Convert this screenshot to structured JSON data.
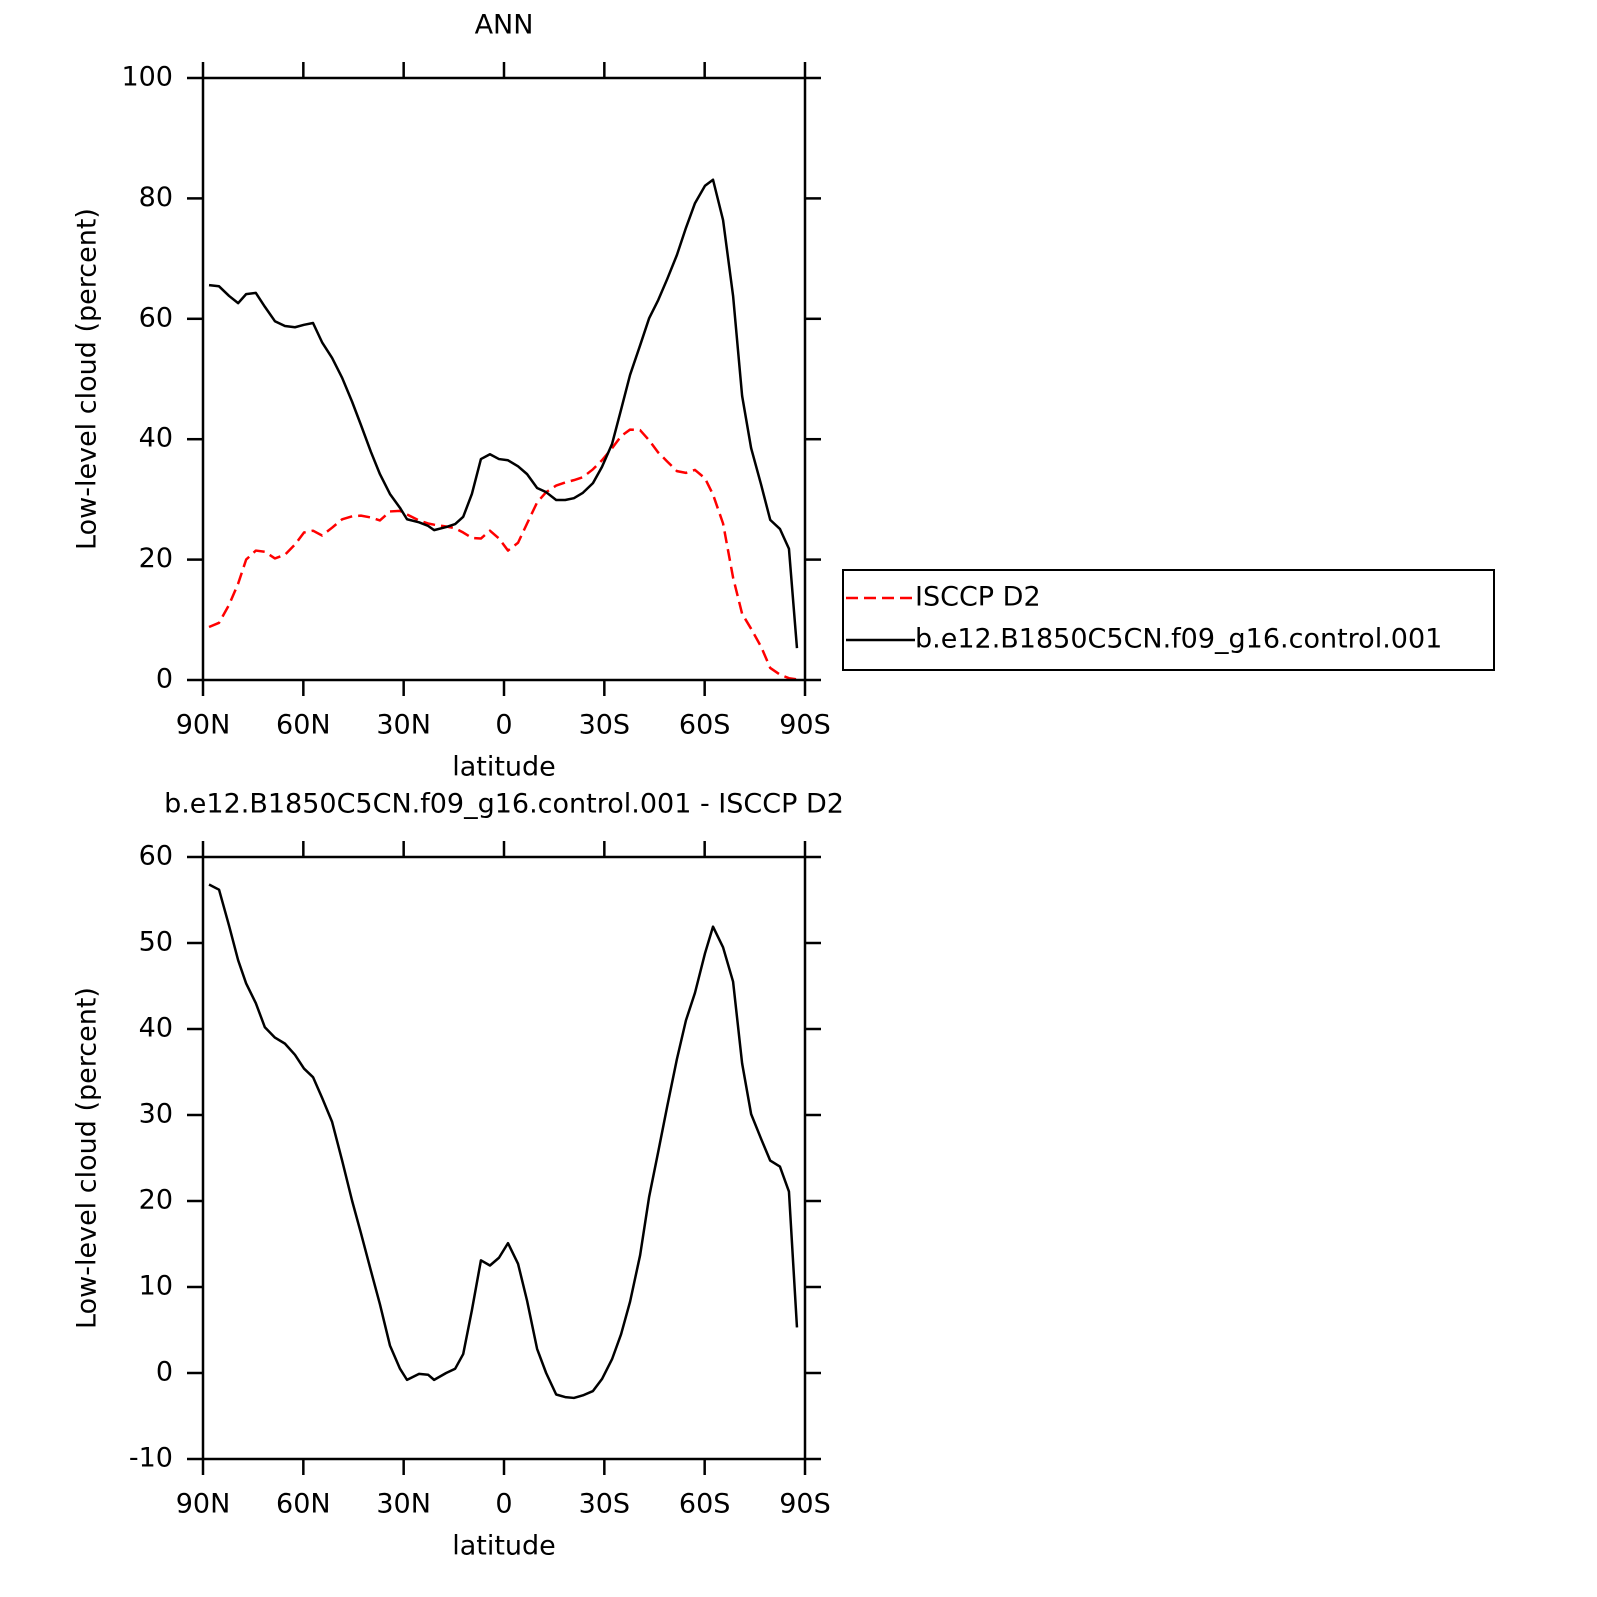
{
  "chart_data": [
    {
      "type": "line",
      "title": "ANN",
      "xlabel": "latitude",
      "ylabel": "Low-level cloud (percent)",
      "x": [
        88.2,
        85.2,
        82.2,
        79.5,
        77.1,
        74.2,
        71.5,
        68.5,
        65.5,
        62.5,
        59.8,
        57.1,
        54.4,
        51.4,
        48.4,
        45.4,
        42.8,
        39.8,
        37.1,
        34.1,
        31.1,
        29.0,
        25.4,
        22.7,
        20.9,
        17.3,
        14.6,
        12.2,
        9.6,
        6.9,
        4.2,
        1.5,
        -1.2,
        -4.2,
        -6.9,
        -9.9,
        -12.6,
        -15.6,
        -18.3,
        -20.9,
        -23.6,
        -26.6,
        -29.3,
        -32.3,
        -35.0,
        -37.7,
        -40.7,
        -43.4,
        -46.1,
        -48.8,
        -51.7,
        -54.4,
        -57.1,
        -60.1,
        -62.5,
        -65.5,
        -68.5,
        -71.2,
        -73.9,
        -76.9,
        -79.6,
        -82.5,
        -85.2,
        -87.6
      ],
      "series": [
        {
          "name": "ISCCP D2",
          "color": "#ff0000",
          "style": "dashed",
          "values": [
            8.8,
            9.5,
            12.5,
            16,
            20,
            21.5,
            21.3,
            20.2,
            20.8,
            22.5,
            24.5,
            24.8,
            24.0,
            25.3,
            26.7,
            27.2,
            27.3,
            27.0,
            26.5,
            28,
            28.1,
            27.5,
            26.5,
            26.0,
            25.8,
            25.5,
            25.2,
            24.5,
            23.6,
            23.5,
            24.8,
            23.5,
            21.5,
            22.8,
            26,
            29.5,
            31.2,
            32.3,
            32.8,
            33.2,
            33.7,
            35,
            36.5,
            38.5,
            40.5,
            41.6,
            41.5,
            39.8,
            37.8,
            36.3,
            34.7,
            34.4,
            34.9,
            33.5,
            30.8,
            26,
            17,
            11,
            8.5,
            5.5,
            2,
            0.9,
            0.3,
            0.1
          ]
        },
        {
          "name": "b.e12.B1850C5CN.f09_g16.control.001",
          "color": "#000000",
          "style": "solid",
          "values": [
            65.6,
            65.4,
            63.8,
            62.6,
            64.1,
            64.3,
            62.0,
            59.6,
            58.8,
            58.6,
            59.0,
            59.3,
            56.1,
            53.5,
            50.2,
            46.2,
            42.4,
            37.9,
            34.2,
            30.9,
            28.6,
            26.7,
            26.2,
            25.6,
            24.9,
            25.4,
            25.9,
            27.1,
            30.9,
            36.7,
            37.5,
            36.7,
            36.5,
            35.5,
            34.2,
            31.9,
            31.2,
            29.9,
            29.9,
            30.2,
            31.1,
            32.7,
            35.4,
            39.2,
            44.9,
            50.7,
            55.6,
            60.1,
            63.1,
            66.6,
            70.6,
            75.1,
            79.2,
            82.1,
            83.1,
            76.4,
            63.8,
            47.2,
            38.5,
            32.4,
            26.6,
            25.1,
            21.8,
            5.3
          ]
        }
      ],
      "xlim": [
        90,
        -90
      ],
      "xticks": [
        {
          "value": 90,
          "label": "90N"
        },
        {
          "value": 60,
          "label": "60N"
        },
        {
          "value": 30,
          "label": "30N"
        },
        0,
        {
          "value": -30,
          "label": "30S"
        },
        {
          "value": -60,
          "label": "60S"
        },
        {
          "value": -90,
          "label": "90S"
        }
      ],
      "ylim": [
        0,
        100
      ],
      "yticks": [
        0,
        20,
        40,
        60,
        80,
        100
      ],
      "legend_position": "right"
    },
    {
      "type": "line",
      "title": "b.e12.B1850C5CN.f09_g16.control.001 - ISCCP D2",
      "xlabel": "latitude",
      "ylabel": "Low-level cloud (percent)",
      "x": [
        88.2,
        85.2,
        82.2,
        79.5,
        77.1,
        74.2,
        71.5,
        68.5,
        65.5,
        62.5,
        59.8,
        57.1,
        54.4,
        51.4,
        48.4,
        45.4,
        42.8,
        39.8,
        37.1,
        34.1,
        31.1,
        29.0,
        25.4,
        22.7,
        20.9,
        17.3,
        14.6,
        12.2,
        9.6,
        6.9,
        4.2,
        1.5,
        -1.2,
        -4.2,
        -6.9,
        -9.9,
        -12.6,
        -15.6,
        -18.3,
        -20.9,
        -23.6,
        -26.6,
        -29.3,
        -32.3,
        -35.0,
        -37.7,
        -40.7,
        -43.4,
        -46.1,
        -48.8,
        -51.7,
        -54.4,
        -57.1,
        -60.1,
        -62.5,
        -65.5,
        -68.5,
        -71.2,
        -73.9,
        -76.9,
        -79.6,
        -82.5,
        -85.2,
        -87.6
      ],
      "series": [
        {
          "color": "#000000",
          "style": "solid",
          "values": [
            56.8,
            56.2,
            52,
            48,
            45.3,
            43,
            40.2,
            39,
            38.3,
            37,
            35.4,
            34.4,
            32,
            29.2,
            24.7,
            20,
            16.3,
            11.9,
            8,
            3.2,
            0.5,
            -0.8,
            -0.1,
            -0.2,
            -0.8,
            0,
            0.5,
            2.2,
            7.3,
            13.1,
            12.5,
            13.4,
            15.1,
            12.7,
            8.4,
            2.8,
            0,
            -2.5,
            -2.8,
            -2.9,
            -2.6,
            -2.1,
            -0.7,
            1.6,
            4.5,
            8.3,
            13.7,
            20.5,
            25.7,
            31,
            36.5,
            41,
            44.2,
            48.8,
            51.9,
            49.5,
            45.5,
            36,
            30.1,
            27.2,
            24.7,
            24,
            21.1,
            5.3
          ]
        }
      ],
      "xlim": [
        90,
        -90
      ],
      "xticks": [
        {
          "value": 90,
          "label": "90N"
        },
        {
          "value": 60,
          "label": "60N"
        },
        {
          "value": 30,
          "label": "30N"
        },
        0,
        {
          "value": -30,
          "label": "30S"
        },
        {
          "value": -60,
          "label": "60S"
        },
        {
          "value": -90,
          "label": "90S"
        }
      ],
      "ylim": [
        -10,
        60
      ],
      "yticks": [
        -10,
        0,
        10,
        20,
        30,
        40,
        50,
        60
      ]
    }
  ]
}
